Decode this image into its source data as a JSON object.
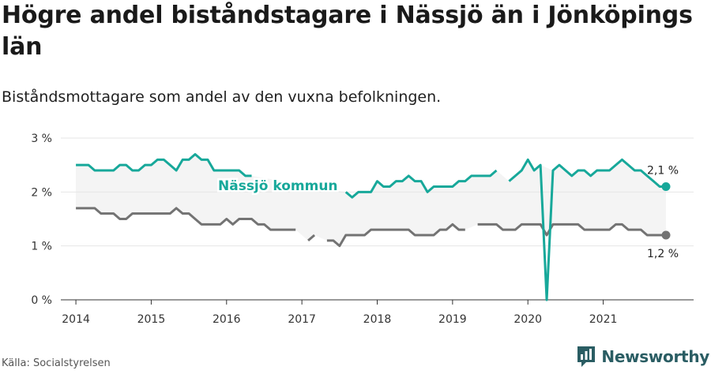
{
  "header": {
    "title": "Högre andel biståndstagare i Nässjö än i Jönköpings län",
    "subtitle": "Biståndsmottagare som andel av den vuxna befolkningen."
  },
  "footer": {
    "source": "Källa: Socialstyrelsen",
    "brand": "Newsworthy"
  },
  "colors": {
    "nassjo": "#17a89a",
    "lan": "#737373",
    "band": "#f4f4f4",
    "grid": "#e6e6e6",
    "axis": "#333333",
    "brand": "#2a5d63"
  },
  "chart_data": {
    "type": "line",
    "title": "Högre andel biståndstagare i Nässjö än i Jönköpings län",
    "subtitle": "Biståndsmottagare som andel av den vuxna befolkningen.",
    "xlabel": "",
    "ylabel": "",
    "x_range": [
      2013.8,
      2022.2
    ],
    "x_ticks": [
      2014,
      2015,
      2016,
      2017,
      2018,
      2019,
      2020,
      2021
    ],
    "x_tick_labels": [
      "2014",
      "2015",
      "2016",
      "2017",
      "2018",
      "2019",
      "2020",
      "2021"
    ],
    "ylim": [
      0,
      3
    ],
    "y_ticks": [
      0,
      1,
      2,
      3
    ],
    "y_tick_labels": [
      "0 %",
      "1 %",
      "2 %",
      "3 %"
    ],
    "grid": true,
    "shaded_band_between_series": true,
    "series": [
      {
        "name": "Nässjö kommun",
        "label_position": "inline",
        "end_label": "2,1 %",
        "points": [
          [
            2014.0,
            2.5
          ],
          [
            2014.083,
            2.5
          ],
          [
            2014.167,
            2.5
          ],
          [
            2014.25,
            2.4
          ],
          [
            2014.333,
            2.4
          ],
          [
            2014.417,
            2.4
          ],
          [
            2014.5,
            2.4
          ],
          [
            2014.583,
            2.5
          ],
          [
            2014.667,
            2.5
          ],
          [
            2014.75,
            2.4
          ],
          [
            2014.833,
            2.4
          ],
          [
            2014.917,
            2.5
          ],
          [
            2015.0,
            2.5
          ],
          [
            2015.083,
            2.6
          ],
          [
            2015.167,
            2.6
          ],
          [
            2015.25,
            2.5
          ],
          [
            2015.333,
            2.4
          ],
          [
            2015.417,
            2.6
          ],
          [
            2015.5,
            2.6
          ],
          [
            2015.583,
            2.7
          ],
          [
            2015.667,
            2.6
          ],
          [
            2015.75,
            2.6
          ],
          [
            2015.833,
            2.4
          ],
          [
            2015.917,
            2.4
          ],
          [
            2016.0,
            2.4
          ],
          [
            2016.083,
            2.4
          ],
          [
            2016.167,
            2.4
          ],
          [
            2016.25,
            2.3
          ],
          [
            2016.333,
            2.3
          ],
          null,
          [
            2017.583,
            2.0
          ],
          [
            2017.667,
            1.9
          ],
          [
            2017.75,
            2.0
          ],
          [
            2017.833,
            2.0
          ],
          [
            2017.917,
            2.0
          ],
          [
            2018.0,
            2.2
          ],
          [
            2018.083,
            2.1
          ],
          [
            2018.167,
            2.1
          ],
          [
            2018.25,
            2.2
          ],
          [
            2018.333,
            2.2
          ],
          [
            2018.417,
            2.3
          ],
          [
            2018.5,
            2.2
          ],
          [
            2018.583,
            2.2
          ],
          [
            2018.667,
            2.0
          ],
          [
            2018.75,
            2.1
          ],
          [
            2018.833,
            2.1
          ],
          [
            2018.917,
            2.1
          ],
          [
            2019.0,
            2.1
          ],
          [
            2019.083,
            2.2
          ],
          [
            2019.167,
            2.2
          ],
          [
            2019.25,
            2.3
          ],
          [
            2019.333,
            2.3
          ],
          [
            2019.417,
            2.3
          ],
          [
            2019.5,
            2.3
          ],
          [
            2019.583,
            2.4
          ],
          null,
          [
            2019.75,
            2.2
          ],
          [
            2019.833,
            2.3
          ],
          [
            2019.917,
            2.4
          ],
          [
            2020.0,
            2.6
          ],
          [
            2020.083,
            2.4
          ],
          [
            2020.167,
            2.5
          ],
          [
            2020.25,
            0.0
          ],
          [
            2020.333,
            2.4
          ],
          [
            2020.417,
            2.5
          ],
          [
            2020.5,
            2.4
          ],
          [
            2020.583,
            2.3
          ],
          [
            2020.667,
            2.4
          ],
          [
            2020.75,
            2.4
          ],
          [
            2020.833,
            2.3
          ],
          [
            2020.917,
            2.4
          ],
          [
            2021.0,
            2.4
          ],
          [
            2021.083,
            2.4
          ],
          [
            2021.167,
            2.5
          ],
          [
            2021.25,
            2.6
          ],
          [
            2021.333,
            2.5
          ],
          [
            2021.417,
            2.4
          ],
          [
            2021.5,
            2.4
          ],
          [
            2021.583,
            2.3
          ],
          [
            2021.667,
            2.2
          ],
          [
            2021.75,
            2.1
          ],
          [
            2021.833,
            2.1
          ]
        ]
      },
      {
        "name": "",
        "end_label": "1,2 %",
        "points": [
          [
            2014.0,
            1.7
          ],
          [
            2014.083,
            1.7
          ],
          [
            2014.167,
            1.7
          ],
          [
            2014.25,
            1.7
          ],
          [
            2014.333,
            1.6
          ],
          [
            2014.417,
            1.6
          ],
          [
            2014.5,
            1.6
          ],
          [
            2014.583,
            1.5
          ],
          [
            2014.667,
            1.5
          ],
          [
            2014.75,
            1.6
          ],
          [
            2014.833,
            1.6
          ],
          [
            2014.917,
            1.6
          ],
          [
            2015.0,
            1.6
          ],
          [
            2015.083,
            1.6
          ],
          [
            2015.167,
            1.6
          ],
          [
            2015.25,
            1.6
          ],
          [
            2015.333,
            1.7
          ],
          [
            2015.417,
            1.6
          ],
          [
            2015.5,
            1.6
          ],
          [
            2015.583,
            1.5
          ],
          [
            2015.667,
            1.4
          ],
          [
            2015.75,
            1.4
          ],
          [
            2015.833,
            1.4
          ],
          [
            2015.917,
            1.4
          ],
          [
            2016.0,
            1.5
          ],
          [
            2016.083,
            1.4
          ],
          [
            2016.167,
            1.5
          ],
          [
            2016.25,
            1.5
          ],
          [
            2016.333,
            1.5
          ],
          [
            2016.417,
            1.4
          ],
          [
            2016.5,
            1.4
          ],
          [
            2016.583,
            1.3
          ],
          [
            2016.667,
            1.3
          ],
          [
            2016.75,
            1.3
          ],
          [
            2016.833,
            1.3
          ],
          [
            2016.917,
            1.3
          ],
          null,
          [
            2017.083,
            1.1
          ],
          [
            2017.167,
            1.2
          ],
          null,
          [
            2017.333,
            1.1
          ],
          [
            2017.417,
            1.1
          ],
          [
            2017.5,
            1.0
          ],
          [
            2017.583,
            1.2
          ],
          [
            2017.667,
            1.2
          ],
          [
            2017.75,
            1.2
          ],
          [
            2017.833,
            1.2
          ],
          [
            2017.917,
            1.3
          ],
          [
            2018.0,
            1.3
          ],
          [
            2018.083,
            1.3
          ],
          [
            2018.167,
            1.3
          ],
          [
            2018.25,
            1.3
          ],
          [
            2018.333,
            1.3
          ],
          [
            2018.417,
            1.3
          ],
          [
            2018.5,
            1.2
          ],
          [
            2018.583,
            1.2
          ],
          [
            2018.667,
            1.2
          ],
          [
            2018.75,
            1.2
          ],
          [
            2018.833,
            1.3
          ],
          [
            2018.917,
            1.3
          ],
          [
            2019.0,
            1.4
          ],
          [
            2019.083,
            1.3
          ],
          [
            2019.167,
            1.3
          ],
          null,
          [
            2019.333,
            1.4
          ],
          [
            2019.417,
            1.4
          ],
          [
            2019.5,
            1.4
          ],
          [
            2019.583,
            1.4
          ],
          [
            2019.667,
            1.3
          ],
          [
            2019.75,
            1.3
          ],
          [
            2019.833,
            1.3
          ],
          [
            2019.917,
            1.4
          ],
          [
            2020.0,
            1.4
          ],
          [
            2020.083,
            1.4
          ],
          [
            2020.167,
            1.4
          ],
          [
            2020.25,
            1.2
          ],
          [
            2020.333,
            1.4
          ],
          [
            2020.417,
            1.4
          ],
          [
            2020.5,
            1.4
          ],
          [
            2020.583,
            1.4
          ],
          [
            2020.667,
            1.4
          ],
          [
            2020.75,
            1.3
          ],
          [
            2020.833,
            1.3
          ],
          [
            2020.917,
            1.3
          ],
          [
            2021.0,
            1.3
          ],
          [
            2021.083,
            1.3
          ],
          [
            2021.167,
            1.4
          ],
          [
            2021.25,
            1.4
          ],
          [
            2021.333,
            1.3
          ],
          [
            2021.417,
            1.3
          ],
          [
            2021.5,
            1.3
          ],
          [
            2021.583,
            1.2
          ],
          [
            2021.667,
            1.2
          ],
          [
            2021.75,
            1.2
          ],
          [
            2021.833,
            1.2
          ]
        ]
      }
    ]
  }
}
